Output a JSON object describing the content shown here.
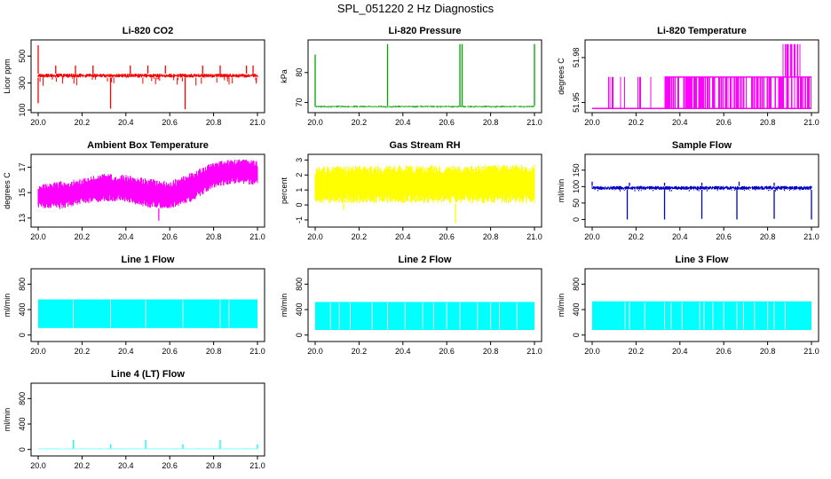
{
  "page": {
    "title": "SPL_051220  2 Hz Diagnostics"
  },
  "chart_data": [
    {
      "id": "co2",
      "type": "line",
      "title": "Li-820 CO2",
      "ylabel": "Licor ppm",
      "color": "#ff0000",
      "xlim": [
        20.0,
        21.0
      ],
      "ylim": [
        100,
        600
      ],
      "xticks": [
        20.0,
        20.2,
        20.4,
        20.6,
        20.8,
        21.0
      ],
      "xtick_labels": [
        "20.0",
        "20.2",
        "20.4",
        "20.6",
        "20.8",
        "21.0"
      ],
      "yticks": [
        100,
        300,
        500
      ],
      "ytick_labels": [
        "100",
        "300",
        "500"
      ],
      "pattern": "baseline_spikes",
      "series": {
        "base_low": 340,
        "base_high": 370,
        "noise_min": 280,
        "up_spikes": [
          {
            "x": 20.0,
            "y": 580
          },
          {
            "x": 20.08,
            "y": 430
          },
          {
            "x": 20.17,
            "y": 430
          },
          {
            "x": 20.25,
            "y": 430
          },
          {
            "x": 20.42,
            "y": 430
          },
          {
            "x": 20.5,
            "y": 430
          },
          {
            "x": 20.58,
            "y": 430
          },
          {
            "x": 20.75,
            "y": 430
          },
          {
            "x": 20.83,
            "y": 430
          },
          {
            "x": 20.95,
            "y": 430
          },
          {
            "x": 20.98,
            "y": 430
          }
        ],
        "down_spikes": [
          {
            "x": 20.0,
            "y": 150
          },
          {
            "x": 20.33,
            "y": 110
          },
          {
            "x": 20.67,
            "y": 105
          }
        ]
      }
    },
    {
      "id": "pressure",
      "type": "line",
      "title": "Li-820 Pressure",
      "ylabel": "kPa",
      "color": "#00a000",
      "xlim": [
        20.0,
        21.0
      ],
      "ylim": [
        67.5,
        90
      ],
      "xticks": [
        20.0,
        20.2,
        20.4,
        20.6,
        20.8,
        21.0
      ],
      "xtick_labels": [
        "20.0",
        "20.2",
        "20.4",
        "20.6",
        "20.8",
        "21.0"
      ],
      "yticks": [
        70,
        80
      ],
      "ytick_labels": [
        "70",
        "80"
      ],
      "pattern": "baseline_spikes",
      "series": {
        "base_low": 68.4,
        "base_high": 68.9,
        "noise_min": 68.2,
        "up_spikes": [
          {
            "x": 20.0,
            "y": 86
          },
          {
            "x": 20.33,
            "y": 89.5
          },
          {
            "x": 20.66,
            "y": 89.5
          },
          {
            "x": 20.67,
            "y": 89.5
          },
          {
            "x": 21.0,
            "y": 89.5
          }
        ],
        "down_spikes": []
      }
    },
    {
      "id": "temp",
      "type": "line",
      "title": "Li-820 Temperature",
      "ylabel": "degrees C",
      "color": "#ff00ff",
      "xlim": [
        20.0,
        21.0
      ],
      "ylim": [
        51.945,
        51.99
      ],
      "xticks": [
        20.0,
        20.2,
        20.4,
        20.6,
        20.8,
        21.0
      ],
      "xtick_labels": [
        "20.0",
        "20.2",
        "20.4",
        "20.6",
        "20.8",
        "21.0"
      ],
      "yticks": [
        51.95,
        51.98
      ],
      "ytick_labels": [
        "51.95",
        "51.98"
      ],
      "pattern": "two_level",
      "series": {
        "low": 51.946,
        "high": 51.967,
        "top": 51.989,
        "dense_from": 20.33,
        "top_from": 20.85,
        "top_to": 20.95
      }
    },
    {
      "id": "ambient",
      "type": "line",
      "title": "Ambient Box Temperature",
      "ylabel": "degrees C",
      "color": "#ff00ff",
      "xlim": [
        20.0,
        21.0
      ],
      "ylim": [
        12.5,
        17.8
      ],
      "xticks": [
        20.0,
        20.2,
        20.4,
        20.6,
        20.8,
        21.0
      ],
      "xtick_labels": [
        "20.0",
        "20.2",
        "20.4",
        "20.6",
        "20.8",
        "21.0"
      ],
      "yticks": [
        13,
        15,
        17
      ],
      "ytick_labels": [
        "13",
        "15",
        "17"
      ],
      "pattern": "envelope",
      "series": {
        "x": [
          20.0,
          20.1,
          20.2,
          20.3,
          20.4,
          20.5,
          20.6,
          20.7,
          20.8,
          20.9,
          21.0
        ],
        "upper": [
          15.6,
          15.9,
          16.1,
          16.5,
          16.4,
          16.1,
          15.9,
          16.6,
          17.4,
          17.7,
          17.5
        ],
        "lower": [
          13.8,
          13.7,
          14.1,
          14.3,
          14.3,
          13.8,
          13.7,
          14.3,
          15.4,
          15.7,
          15.6
        ],
        "outliers": [
          {
            "x": 20.55,
            "y": 12.8
          }
        ]
      }
    },
    {
      "id": "rh",
      "type": "line",
      "title": "Gas Stream RH",
      "ylabel": "percent",
      "color": "#ffff00",
      "xlim": [
        20.0,
        21.0
      ],
      "ylim": [
        -1.3,
        3.2
      ],
      "xticks": [
        20.0,
        20.2,
        20.4,
        20.6,
        20.8,
        21.0
      ],
      "xtick_labels": [
        "20.0",
        "20.2",
        "20.4",
        "20.6",
        "20.8",
        "21.0"
      ],
      "yticks": [
        -1,
        0,
        1,
        2,
        3
      ],
      "ytick_labels": [
        "-1",
        "0",
        "1",
        "2",
        "3"
      ],
      "pattern": "envelope",
      "series": {
        "x": [
          20.0,
          21.0
        ],
        "upper": [
          2.6,
          2.7
        ],
        "lower": [
          0.1,
          0.1
        ],
        "outliers": [
          {
            "x": 20.13,
            "y": -0.3
          },
          {
            "x": 20.64,
            "y": -1.2
          }
        ]
      }
    },
    {
      "id": "sample",
      "type": "line",
      "title": "Sample Flow",
      "ylabel": "ml/min",
      "color": "#0000c8",
      "xlim": [
        20.0,
        21.0
      ],
      "ylim": [
        -15,
        190
      ],
      "xticks": [
        20.0,
        20.2,
        20.4,
        20.6,
        20.8,
        21.0
      ],
      "xtick_labels": [
        "20.0",
        "20.2",
        "20.4",
        "20.6",
        "20.8",
        "21.0"
      ],
      "yticks": [
        0,
        50,
        100,
        150
      ],
      "ytick_labels": [
        "0",
        "50",
        "100",
        "150"
      ],
      "pattern": "baseline_spikes",
      "series": {
        "base_low": 90,
        "base_high": 102,
        "noise_min": 85,
        "up_spikes": [
          {
            "x": 20.0,
            "y": 115
          },
          {
            "x": 20.17,
            "y": 112
          },
          {
            "x": 20.33,
            "y": 112
          },
          {
            "x": 20.5,
            "y": 112
          },
          {
            "x": 20.67,
            "y": 115
          },
          {
            "x": 20.83,
            "y": 112
          }
        ],
        "down_spikes": [
          {
            "x": 20.16,
            "y": 0
          },
          {
            "x": 20.33,
            "y": 0
          },
          {
            "x": 20.5,
            "y": 2
          },
          {
            "x": 20.66,
            "y": 0
          },
          {
            "x": 20.83,
            "y": 2
          },
          {
            "x": 21.0,
            "y": 0
          }
        ]
      }
    },
    {
      "id": "line1",
      "type": "line",
      "title": "Line 1 Flow",
      "ylabel": "ml/min",
      "color": "#00ffff",
      "xlim": [
        20.0,
        21.0
      ],
      "ylim": [
        -60,
        1000
      ],
      "xticks": [
        20.0,
        20.2,
        20.4,
        20.6,
        20.8,
        21.0
      ],
      "xtick_labels": [
        "20.0",
        "20.2",
        "20.4",
        "20.6",
        "20.8",
        "21.0"
      ],
      "yticks": [
        0,
        400,
        800
      ],
      "ytick_labels": [
        "0",
        "400",
        "800"
      ],
      "pattern": "band_gaps",
      "series": {
        "low": 110,
        "high": 560,
        "gaps": [
          20.16,
          20.33,
          20.49,
          20.66,
          20.83,
          20.87
        ]
      }
    },
    {
      "id": "line2",
      "type": "line",
      "title": "Line 2 Flow",
      "ylabel": "ml/min",
      "color": "#00ffff",
      "xlim": [
        20.0,
        21.0
      ],
      "ylim": [
        -60,
        1000
      ],
      "xticks": [
        20.0,
        20.2,
        20.4,
        20.6,
        20.8,
        21.0
      ],
      "xtick_labels": [
        "20.0",
        "20.2",
        "20.4",
        "20.6",
        "20.8",
        "21.0"
      ],
      "yticks": [
        0,
        400,
        800
      ],
      "ytick_labels": [
        "0",
        "400",
        "800"
      ],
      "pattern": "band_gaps",
      "series": {
        "low": 80,
        "high": 520,
        "gaps": [
          20.07,
          20.11,
          20.16,
          20.26,
          20.33,
          20.41,
          20.49,
          20.54,
          20.6,
          20.66,
          20.74,
          20.8,
          20.84,
          20.92
        ]
      }
    },
    {
      "id": "line3",
      "type": "line",
      "title": "Line 3 Flow",
      "ylabel": "ml/min",
      "color": "#00ffff",
      "xlim": [
        20.0,
        21.0
      ],
      "ylim": [
        -60,
        1000
      ],
      "xticks": [
        20.0,
        20.2,
        20.4,
        20.6,
        20.8,
        21.0
      ],
      "xtick_labels": [
        "20.0",
        "20.2",
        "20.4",
        "20.6",
        "20.8",
        "21.0"
      ],
      "yticks": [
        0,
        400,
        800
      ],
      "ytick_labels": [
        "0",
        "400",
        "800"
      ],
      "pattern": "band_gaps",
      "series": {
        "low": 80,
        "high": 530,
        "gaps": [
          20.15,
          20.17,
          20.24,
          20.33,
          20.36,
          20.41,
          20.49,
          20.51,
          20.55,
          20.6,
          20.66,
          20.69,
          20.74,
          20.8,
          20.83,
          20.88
        ]
      }
    },
    {
      "id": "line4",
      "type": "line",
      "title": "Line 4 (LT) Flow",
      "ylabel": "ml/min",
      "color": "#00ffff",
      "xlim": [
        20.0,
        21.0
      ],
      "ylim": [
        -60,
        1000
      ],
      "xticks": [
        20.0,
        20.2,
        20.4,
        20.6,
        20.8,
        21.0
      ],
      "xtick_labels": [
        "20.0",
        "20.2",
        "20.4",
        "20.6",
        "20.8",
        "21.0"
      ],
      "yticks": [
        0,
        400,
        800
      ],
      "ytick_labels": [
        "0",
        "400",
        "800"
      ],
      "pattern": "baseline_spikes",
      "series": {
        "base_low": 5,
        "base_high": 15,
        "noise_min": 3,
        "up_spikes": [
          {
            "x": 20.16,
            "y": 150
          },
          {
            "x": 20.33,
            "y": 80
          },
          {
            "x": 20.49,
            "y": 150
          },
          {
            "x": 20.66,
            "y": 80
          },
          {
            "x": 20.83,
            "y": 150
          },
          {
            "x": 21.0,
            "y": 80
          }
        ],
        "down_spikes": []
      }
    }
  ]
}
